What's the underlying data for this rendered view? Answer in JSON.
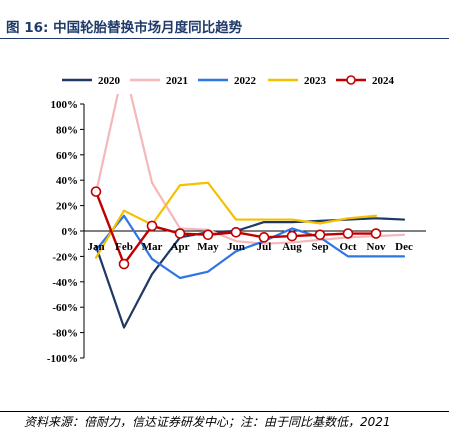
{
  "figure": {
    "title": "图 16:  中国轮胎替换市场月度同比趋势",
    "source": "资料来源：倍耐力，信达证券研发中心；注：由于同比基数低，2021"
  },
  "chart_data": {
    "type": "line",
    "categories": [
      "Jan",
      "Feb",
      "Mar",
      "Apr",
      "May",
      "Jun",
      "Jul",
      "Aug",
      "Sep",
      "Oct",
      "Nov",
      "Dec"
    ],
    "y_ticks": [
      "100%",
      "80%",
      "60%",
      "40%",
      "20%",
      "0%",
      "-20%",
      "-40%",
      "-60%",
      "-80%",
      "-100%"
    ],
    "ylim": [
      -100,
      100
    ],
    "grid": false,
    "legend_position": "top",
    "series": [
      {
        "name": "2020",
        "color": "#1f3864",
        "marker": "none",
        "values": [
          -12,
          -76,
          -34,
          -5,
          -1,
          0,
          7,
          7,
          8,
          9,
          10,
          9
        ]
      },
      {
        "name": "2021",
        "color": "#f4b8b8",
        "marker": "none",
        "values": [
          30,
          130,
          38,
          2,
          1,
          -8,
          -10,
          -9,
          -7,
          -5,
          -4,
          -3
        ]
      },
      {
        "name": "2022",
        "color": "#2e75e6",
        "marker": "none",
        "values": [
          -15,
          12,
          -22,
          -37,
          -32,
          -16,
          -8,
          2,
          -5,
          -20,
          -20,
          -20
        ]
      },
      {
        "name": "2023",
        "color": "#f5c000",
        "marker": "none",
        "values": [
          -21,
          16,
          5,
          36,
          38,
          9,
          9,
          9,
          6,
          10,
          12,
          null
        ]
      },
      {
        "name": "2024",
        "color": "#c00000",
        "marker": "circle",
        "values": [
          31,
          -26,
          4,
          -2,
          -3,
          -1,
          -5,
          -4,
          -3,
          -2,
          -2,
          null
        ]
      }
    ]
  }
}
